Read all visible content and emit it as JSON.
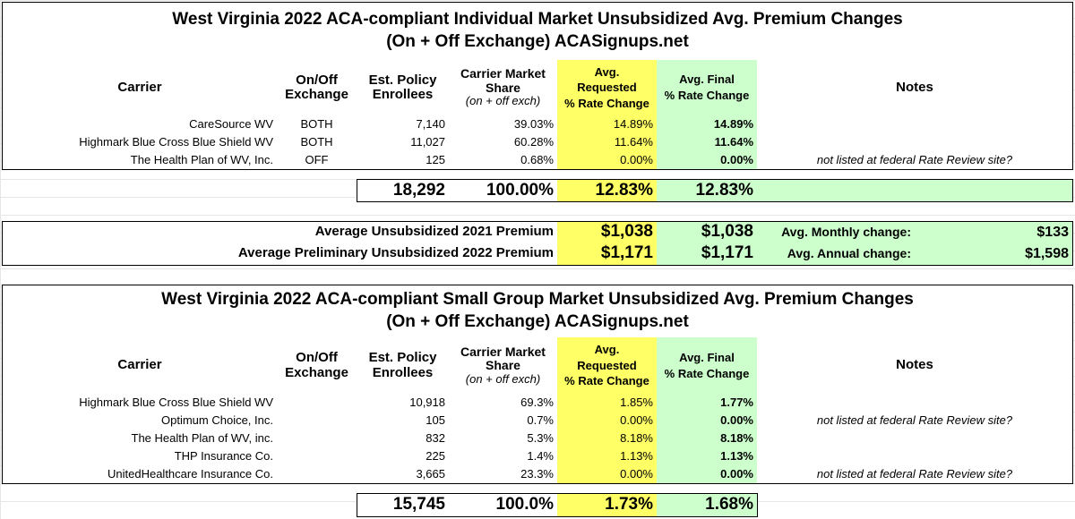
{
  "individual": {
    "title_line1": "West Virginia 2022 ACA-compliant Individual Market Unsubsidized Avg. Premium Changes",
    "title_line2": "(On + Off Exchange) ACASignups.net",
    "headers": {
      "carrier": "Carrier",
      "onoff_1": "On/Off",
      "onoff_2": "Exchange",
      "enroll_1": "Est. Policy",
      "enroll_2": "Enrollees",
      "share_1": "Carrier Market",
      "share_2": "Share",
      "share_3": "(on + off exch)",
      "req_1": "Avg.",
      "req_2": "Requested",
      "req_3": "% Rate Change",
      "fin_1": "Avg. Final",
      "fin_2": "% Rate Change",
      "notes": "Notes"
    },
    "rows": [
      {
        "carrier": "CareSource WV",
        "exchange": "BOTH",
        "enrollees": "7,140",
        "share": "39.03%",
        "requested": "14.89%",
        "final": "14.89%",
        "notes": ""
      },
      {
        "carrier": "Highmark Blue Cross Blue Shield WV",
        "exchange": "BOTH",
        "enrollees": "11,027",
        "share": "60.28%",
        "requested": "11.64%",
        "final": "11.64%",
        "notes": ""
      },
      {
        "carrier": "The Health Plan of WV, Inc.",
        "exchange": "OFF",
        "enrollees": "125",
        "share": "0.68%",
        "requested": "0.00%",
        "final": "0.00%",
        "notes": "not listed at federal Rate Review site?"
      }
    ],
    "totals": {
      "enrollees": "18,292",
      "share": "100.00%",
      "requested": "12.83%",
      "final": "12.83%"
    },
    "premiums": {
      "label_2021": "Average Unsubsidized 2021 Premium",
      "req_2021": "$1,038",
      "fin_2021": "$1,038",
      "monthly_label": "Avg. Monthly change:",
      "monthly_value": "$133",
      "label_2022": "Average Preliminary Unsubsidized 2022 Premium",
      "req_2022": "$1,171",
      "fin_2022": "$1,171",
      "annual_label": "Avg. Annual change:",
      "annual_value": "$1,598"
    }
  },
  "small_group": {
    "title_line1": "West Virginia 2022 ACA-compliant Small Group Market Unsubsidized Avg. Premium Changes",
    "title_line2": "(On + Off Exchange) ACASignups.net",
    "headers": {
      "carrier": "Carrier",
      "onoff_1": "On/Off",
      "onoff_2": "Exchange",
      "enroll_1": "Est. Policy",
      "enroll_2": "Enrollees",
      "share_1": "Carrier Market",
      "share_2": "Share",
      "share_3": "(on + off exch)",
      "req_1": "Avg.",
      "req_2": "Requested",
      "req_3": "% Rate Change",
      "fin_1": "Avg. Final",
      "fin_2": "% Rate Change",
      "notes": "Notes"
    },
    "rows": [
      {
        "carrier": "Highmark Blue Cross Blue Shield WV",
        "exchange": "",
        "enrollees": "10,918",
        "share": "69.3%",
        "requested": "1.85%",
        "final": "1.77%",
        "notes": ""
      },
      {
        "carrier": "Optimum Choice, Inc.",
        "exchange": "",
        "enrollees": "105",
        "share": "0.7%",
        "requested": "0.00%",
        "final": "0.00%",
        "notes": "not listed at federal Rate Review site?"
      },
      {
        "carrier": "The Health Plan of WV, inc.",
        "exchange": "",
        "enrollees": "832",
        "share": "5.3%",
        "requested": "8.18%",
        "final": "8.18%",
        "notes": ""
      },
      {
        "carrier": "THP Insurance Co.",
        "exchange": "",
        "enrollees": "225",
        "share": "1.4%",
        "requested": "1.13%",
        "final": "1.13%",
        "notes": ""
      },
      {
        "carrier": "UnitedHealthcare Insurance Co.",
        "exchange": "",
        "enrollees": "3,665",
        "share": "23.3%",
        "requested": "0.00%",
        "final": "0.00%",
        "notes": "not listed at federal Rate Review site?"
      }
    ],
    "totals": {
      "enrollees": "15,745",
      "share": "100.0%",
      "requested": "1.73%",
      "final": "1.68%"
    }
  }
}
